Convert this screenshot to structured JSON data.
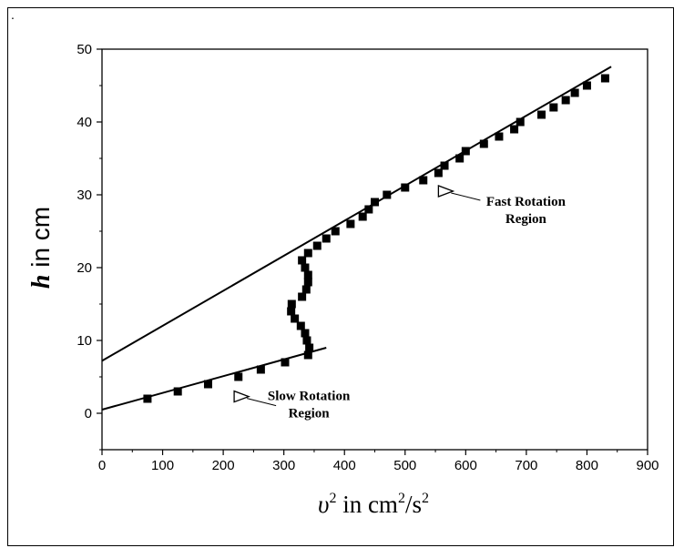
{
  "page": {
    "corner_mark": "."
  },
  "chart_data": {
    "type": "scatter",
    "title": "",
    "ylabel_symbol": "h",
    "ylabel_rest": " in cm",
    "xlabel_parts": {
      "base": "υ",
      "exp": "2",
      "mid": " in cm",
      "exp2": "2",
      "tail": "/s",
      "exp3": "2"
    },
    "xlim": [
      0,
      900
    ],
    "ylim": [
      -5,
      50
    ],
    "xticks": [
      0,
      100,
      200,
      300,
      400,
      500,
      600,
      700,
      800,
      900
    ],
    "yticks": [
      0,
      10,
      20,
      30,
      40,
      50
    ],
    "grid": false,
    "colors": {
      "marker": "#000000",
      "line": "#000000"
    },
    "series": [
      {
        "points": [
          [
            75,
            2
          ],
          [
            125,
            3
          ],
          [
            175,
            4
          ],
          [
            225,
            5
          ],
          [
            262,
            6
          ],
          [
            302,
            7
          ],
          [
            340,
            8
          ],
          [
            342,
            9
          ],
          [
            338,
            10
          ],
          [
            335,
            11
          ],
          [
            328,
            12
          ],
          [
            318,
            13
          ],
          [
            312,
            14
          ],
          [
            313,
            15
          ],
          [
            330,
            16
          ],
          [
            337,
            17
          ],
          [
            340,
            18
          ],
          [
            340,
            19
          ],
          [
            335,
            20
          ],
          [
            330,
            21
          ],
          [
            340,
            22
          ],
          [
            355,
            23
          ],
          [
            370,
            24
          ],
          [
            385,
            25
          ],
          [
            410,
            26
          ],
          [
            430,
            27
          ],
          [
            440,
            28
          ],
          [
            450,
            29
          ],
          [
            470,
            30
          ],
          [
            500,
            31
          ],
          [
            530,
            32
          ],
          [
            555,
            33
          ],
          [
            565,
            34
          ],
          [
            590,
            35
          ],
          [
            600,
            36
          ],
          [
            630,
            37
          ],
          [
            655,
            38
          ],
          [
            680,
            39
          ],
          [
            690,
            40
          ],
          [
            725,
            41
          ],
          [
            745,
            42
          ],
          [
            765,
            43
          ],
          [
            780,
            44
          ],
          [
            800,
            45
          ],
          [
            830,
            46
          ]
        ]
      }
    ],
    "fit_lines": [
      {
        "x": [
          0,
          370
        ],
        "y": [
          0.5,
          9
        ]
      },
      {
        "x": [
          0,
          840
        ],
        "y": [
          7.2,
          47.6
        ]
      }
    ],
    "annotations": [
      {
        "lines": [
          "Fast Rotation",
          "Region"
        ],
        "arrow_at": [
          555,
          30.5
        ]
      },
      {
        "lines": [
          "Slow Rotation",
          "Region"
        ],
        "arrow_at": [
          218,
          2.3
        ]
      }
    ]
  }
}
